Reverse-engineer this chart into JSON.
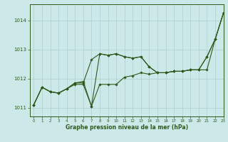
{
  "title": "Graphe pression niveau de la mer (hPa)",
  "bg_color": "#cce8e8",
  "line_color": "#2d5a1b",
  "grid_color": "#aacfcf",
  "xlim": [
    -0.5,
    23
  ],
  "ylim": [
    1010.7,
    1014.55
  ],
  "yticks": [
    1011,
    1012,
    1013,
    1014
  ],
  "xticks": [
    0,
    1,
    2,
    3,
    4,
    5,
    6,
    7,
    8,
    9,
    10,
    11,
    12,
    13,
    14,
    15,
    16,
    17,
    18,
    19,
    20,
    21,
    22,
    23
  ],
  "series1": [
    [
      0,
      1011.1
    ],
    [
      1,
      1011.7
    ],
    [
      2,
      1011.55
    ],
    [
      3,
      1011.5
    ],
    [
      4,
      1011.65
    ],
    [
      5,
      1011.8
    ],
    [
      6,
      1011.8
    ],
    [
      7,
      1011.05
    ],
    [
      8,
      1011.8
    ],
    [
      9,
      1011.8
    ],
    [
      10,
      1011.8
    ],
    [
      11,
      1012.05
    ],
    [
      12,
      1012.1
    ],
    [
      13,
      1012.2
    ],
    [
      14,
      1012.15
    ],
    [
      15,
      1012.2
    ],
    [
      16,
      1012.2
    ],
    [
      17,
      1012.25
    ],
    [
      18,
      1012.25
    ],
    [
      19,
      1012.3
    ],
    [
      20,
      1012.3
    ],
    [
      21,
      1012.3
    ],
    [
      22,
      1013.35
    ],
    [
      23,
      1014.25
    ]
  ],
  "series2": [
    [
      0,
      1011.1
    ],
    [
      1,
      1011.7
    ],
    [
      2,
      1011.55
    ],
    [
      3,
      1011.5
    ],
    [
      4,
      1011.65
    ],
    [
      5,
      1011.85
    ],
    [
      6,
      1011.9
    ],
    [
      7,
      1011.05
    ],
    [
      8,
      1012.85
    ],
    [
      9,
      1012.8
    ],
    [
      10,
      1012.85
    ],
    [
      11,
      1012.75
    ],
    [
      12,
      1012.7
    ],
    [
      13,
      1012.75
    ],
    [
      14,
      1012.4
    ],
    [
      15,
      1012.2
    ],
    [
      16,
      1012.2
    ],
    [
      17,
      1012.25
    ],
    [
      18,
      1012.25
    ],
    [
      19,
      1012.3
    ],
    [
      20,
      1012.3
    ],
    [
      21,
      1012.75
    ],
    [
      22,
      1013.35
    ],
    [
      23,
      1014.25
    ]
  ],
  "series3": [
    [
      0,
      1011.1
    ],
    [
      1,
      1011.7
    ],
    [
      2,
      1011.55
    ],
    [
      3,
      1011.5
    ],
    [
      4,
      1011.65
    ],
    [
      5,
      1011.85
    ],
    [
      6,
      1011.85
    ],
    [
      7,
      1012.65
    ],
    [
      8,
      1012.85
    ],
    [
      9,
      1012.8
    ],
    [
      10,
      1012.85
    ],
    [
      11,
      1012.75
    ],
    [
      12,
      1012.7
    ],
    [
      13,
      1012.75
    ],
    [
      14,
      1012.4
    ],
    [
      15,
      1012.2
    ],
    [
      16,
      1012.2
    ],
    [
      17,
      1012.25
    ],
    [
      18,
      1012.25
    ],
    [
      19,
      1012.3
    ],
    [
      20,
      1012.3
    ],
    [
      21,
      1012.75
    ],
    [
      22,
      1013.35
    ],
    [
      23,
      1014.25
    ]
  ]
}
